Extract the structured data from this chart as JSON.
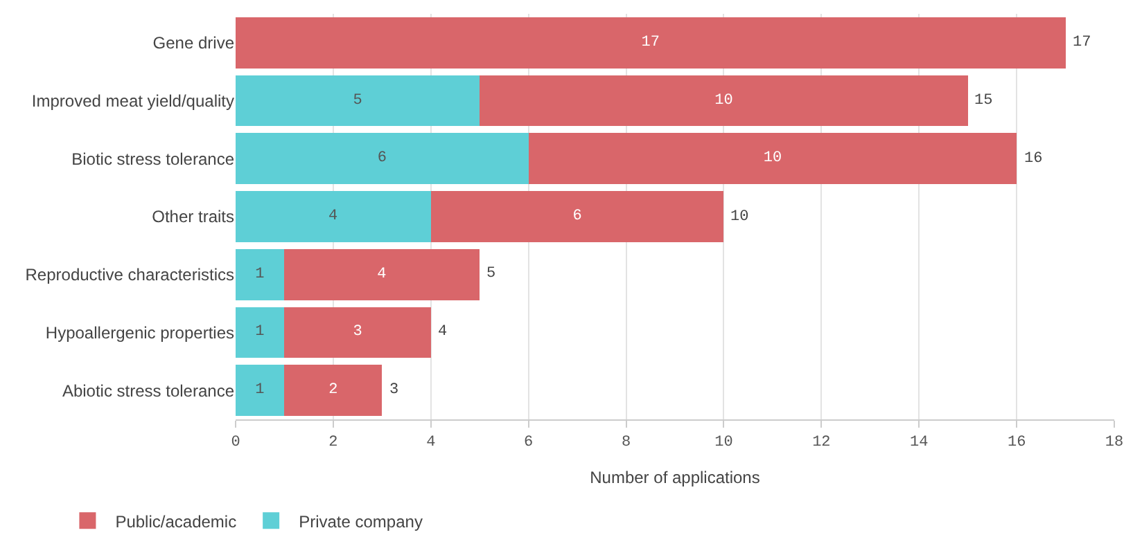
{
  "chart_data": {
    "type": "bar",
    "orientation": "horizontal",
    "stacked": true,
    "categories": [
      "Gene drive",
      "Improved meat yield/quality",
      "Biotic stress tolerance",
      "Other traits",
      "Reproductive characteristics",
      "Hypoallergenic properties",
      "Abiotic stress tolerance"
    ],
    "series": [
      {
        "name": "Private company",
        "color": "#5ecfd6",
        "values": [
          null,
          5,
          6,
          4,
          1,
          1,
          1
        ]
      },
      {
        "name": "Public/academic",
        "color": "#d9666a",
        "values": [
          17,
          10,
          10,
          6,
          4,
          3,
          2
        ]
      }
    ],
    "totals": [
      "17",
      "15",
      "16",
      "10",
      "5",
      "4",
      "3"
    ],
    "data_labels": true,
    "xlabel": "Number of applications",
    "xlim": [
      0,
      18
    ],
    "xticks": [
      0,
      2,
      4,
      6,
      8,
      10,
      12,
      14,
      16,
      18
    ],
    "grid": "x",
    "legend": "bottom left"
  }
}
